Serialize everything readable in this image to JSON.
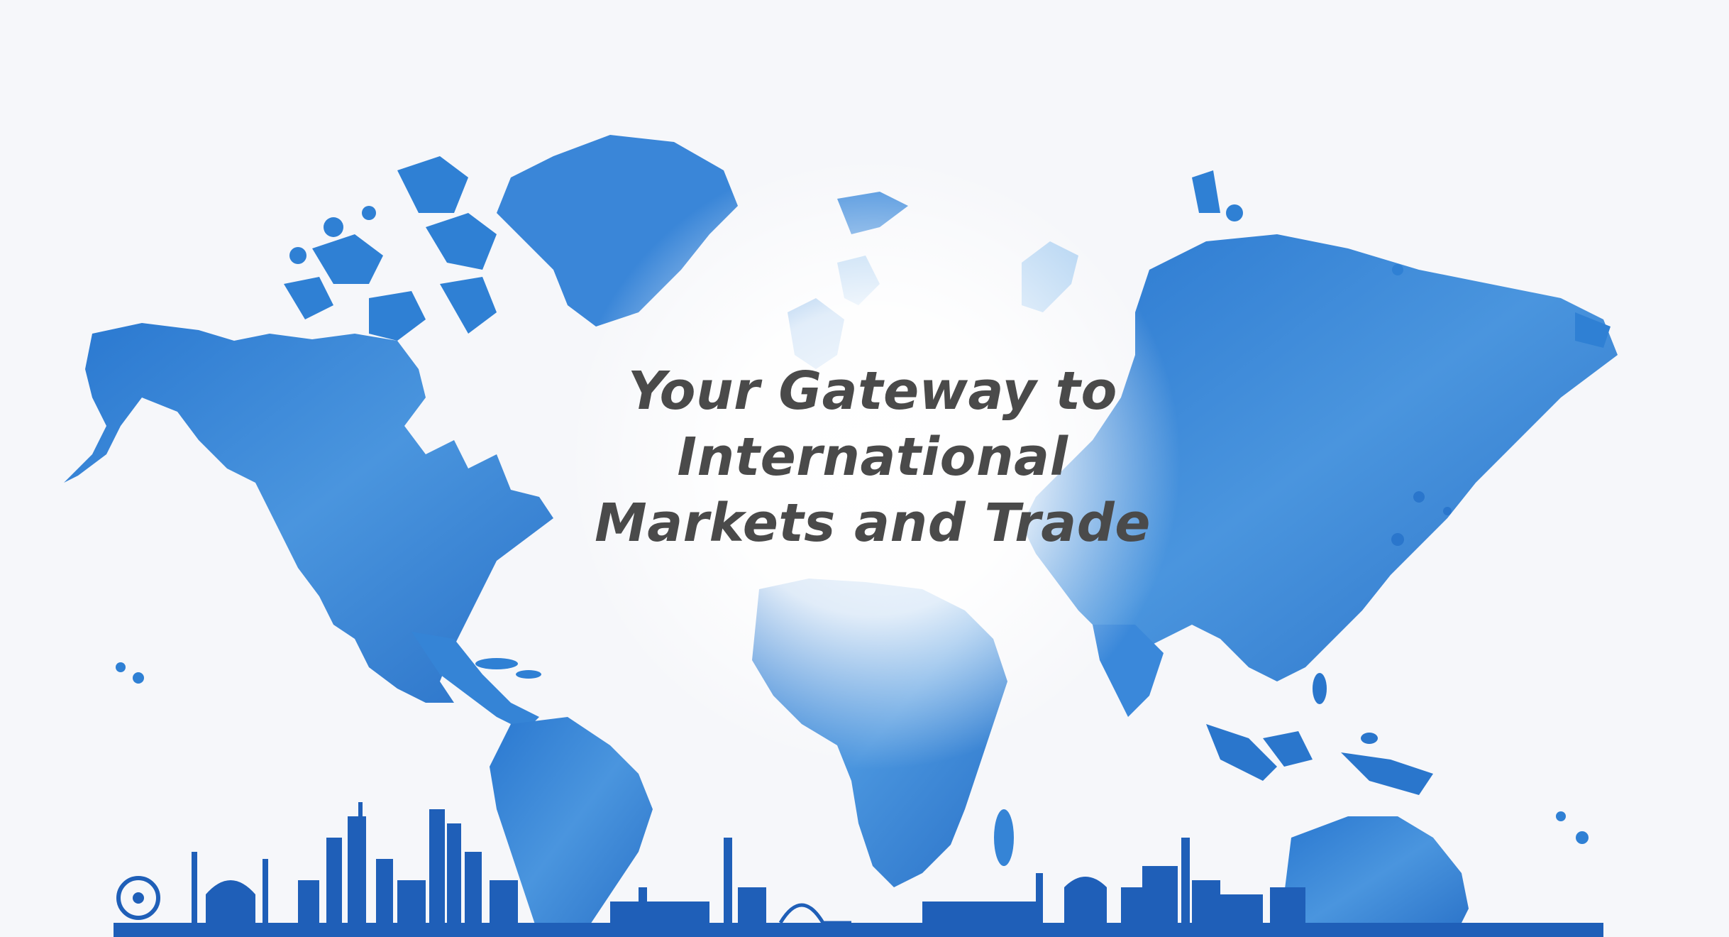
{
  "headline": {
    "line1": "Your Gateway to",
    "line2": "International",
    "line3": "Markets and Trade"
  },
  "colors": {
    "background": "#f6f7fa",
    "map_blue": "#2f80d4",
    "map_light": "#a8cdef",
    "skyline": "#1f5fb8",
    "text": "#4a4a4a"
  }
}
